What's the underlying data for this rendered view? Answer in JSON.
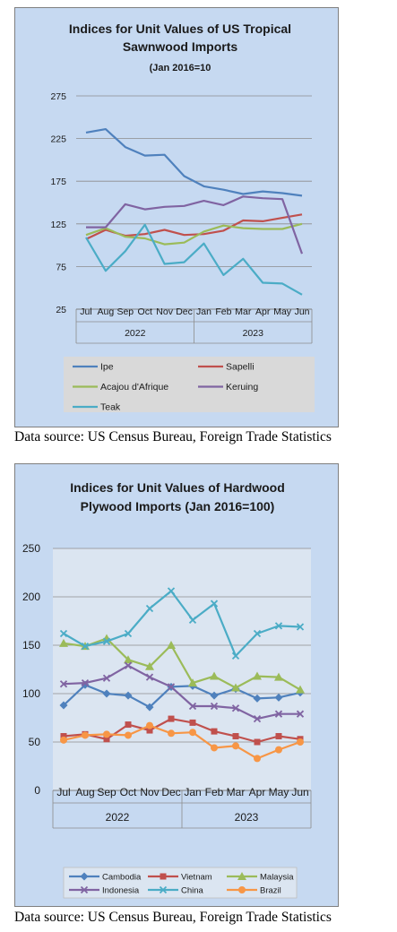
{
  "charts": [
    {
      "title_lines": [
        "Indices for Unit Values of US Tropical",
        "Sawnwood Imports"
      ],
      "subtitle": "(Jan 2016=10",
      "source": "Data source: US Census Bureau, Foreign Trade Statistics"
    },
    {
      "title_lines": [
        "Indices for Unit Values of Hardwood",
        "Plywood Imports (Jan 2016=100)"
      ],
      "subtitle": "",
      "source": "Data source: US Census Bureau, Foreign Trade Statistics"
    }
  ],
  "chart_data": [
    {
      "type": "line",
      "title": "Indices for Unit Values of US Tropical Sawnwood Imports",
      "subtitle": "(Jan 2016=10",
      "categories": [
        "Jul",
        "Aug",
        "Sep",
        "Oct",
        "Nov",
        "Dec",
        "Jan",
        "Feb",
        "Mar",
        "Apr",
        "May",
        "Jun"
      ],
      "year_groups": [
        {
          "label": "2022",
          "count": 6
        },
        {
          "label": "2023",
          "count": 6
        }
      ],
      "ylim": [
        25,
        275
      ],
      "yticks": [
        25,
        75,
        125,
        175,
        225,
        275
      ],
      "grid": true,
      "legend_position": "bottom",
      "series": [
        {
          "name": "Ipe",
          "color": "#4f81bd",
          "values": [
            232,
            236,
            215,
            205,
            206,
            181,
            169,
            165,
            160,
            163,
            161,
            158
          ]
        },
        {
          "name": "Sapelli",
          "color": "#c0504d",
          "values": [
            107,
            118,
            111,
            113,
            118,
            112,
            113,
            117,
            129,
            128,
            132,
            136
          ]
        },
        {
          "name": "Acajou d'Afrique",
          "color": "#9bbb59",
          "values": [
            112,
            120,
            110,
            108,
            101,
            103,
            116,
            123,
            120,
            119,
            119,
            125
          ]
        },
        {
          "name": "Keruing",
          "color": "#8064a2",
          "values": [
            121,
            121,
            148,
            142,
            145,
            146,
            152,
            147,
            157,
            155,
            154,
            90
          ]
        },
        {
          "name": "Teak",
          "color": "#4bacc6",
          "values": [
            109,
            70,
            93,
            124,
            78,
            80,
            102,
            65,
            84,
            56,
            55,
            42
          ]
        }
      ]
    },
    {
      "type": "line",
      "title": "Indices for Unit Values of Hardwood Plywood Imports (Jan 2016=100)",
      "categories": [
        "Jul",
        "Aug",
        "Sep",
        "Oct",
        "Nov",
        "Dec",
        "Jan",
        "Feb",
        "Mar",
        "Apr",
        "May",
        "Jun"
      ],
      "year_groups": [
        {
          "label": "2022",
          "count": 6
        },
        {
          "label": "2023",
          "count": 6
        }
      ],
      "ylim": [
        0,
        250
      ],
      "yticks": [
        0,
        50,
        100,
        150,
        200,
        250
      ],
      "grid": true,
      "legend_position": "bottom",
      "series": [
        {
          "name": "Cambodia",
          "color": "#4f81bd",
          "marker": "diamond",
          "values": [
            88,
            109,
            100,
            98,
            86,
            107,
            108,
            98,
            105,
            95,
            96,
            101
          ]
        },
        {
          "name": "Vietnam",
          "color": "#c0504d",
          "marker": "square",
          "values": [
            56,
            58,
            53,
            68,
            62,
            74,
            70,
            61,
            56,
            50,
            56,
            53
          ]
        },
        {
          "name": "Malaysia",
          "color": "#9bbb59",
          "marker": "triangle",
          "values": [
            152,
            149,
            157,
            135,
            128,
            150,
            111,
            118,
            106,
            118,
            117,
            104
          ]
        },
        {
          "name": "Indonesia",
          "color": "#8064a2",
          "marker": "x",
          "values": [
            110,
            111,
            116,
            129,
            117,
            107,
            87,
            87,
            85,
            74,
            79,
            79
          ]
        },
        {
          "name": "China",
          "color": "#4bacc6",
          "marker": "x",
          "values": [
            162,
            149,
            154,
            162,
            188,
            206,
            176,
            193,
            139,
            162,
            170,
            169
          ]
        },
        {
          "name": "Brazil",
          "color": "#f79646",
          "marker": "circle",
          "values": [
            52,
            57,
            58,
            57,
            67,
            59,
            60,
            44,
            46,
            33,
            42,
            50
          ]
        }
      ]
    }
  ]
}
